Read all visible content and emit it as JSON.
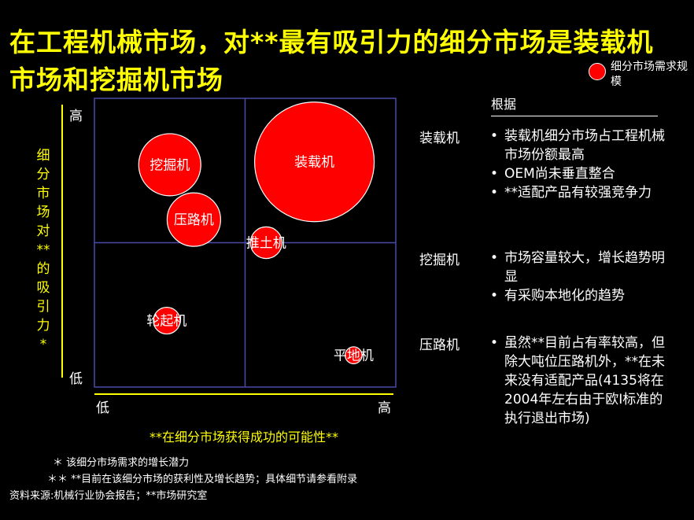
{
  "title": "在工程机械市场，对**最有吸引力的细分市场是装载机市场和挖掘机市场",
  "legend": {
    "label": "细分市场需求规模",
    "color": "#ff0000"
  },
  "basis_header": "根据",
  "reasons": [
    {
      "label": "装载机",
      "points": [
        "装载机细分市场占工程机械市场份额最高",
        "OEM尚未垂直整合",
        "**适配产品有较强竞争力"
      ]
    },
    {
      "label": "挖掘机",
      "points": [
        "市场容量较大，增长趋势明显",
        "有采购本地化的趋势"
      ]
    },
    {
      "label": "压路机",
      "points": [
        "虽然**目前占有率较高，但除大吨位压路机外，**在未来没有适配产品(4135将在2004年左右由于欧I标准的执行退出市场)"
      ]
    }
  ],
  "footnotes": [
    "＊  该细分市场需求的增长潜力",
    "＊＊  **目前在该细分市场的获利性及增长趋势；具体细节请参看附录",
    "资料来源:机械行业协会报告；**市场研究室"
  ],
  "chart_data": {
    "type": "bubble",
    "xlabel": "**在细分市场获得成功的可能性**",
    "ylabel": "细分市场对**的吸引力*",
    "x_ticks": [
      "低",
      "高"
    ],
    "y_ticks": [
      "低",
      "高"
    ],
    "xlim": [
      0,
      10
    ],
    "ylim": [
      0,
      10
    ],
    "quadrant_split": [
      5,
      5
    ],
    "bubble_color": "#ff0000",
    "series": [
      {
        "label": "装载机",
        "x": 7.3,
        "y": 7.8,
        "size": 100
      },
      {
        "label": "挖掘机",
        "x": 2.5,
        "y": 7.7,
        "size": 27
      },
      {
        "label": "压路机",
        "x": 3.3,
        "y": 5.8,
        "size": 20
      },
      {
        "label": "推土机",
        "x": 5.7,
        "y": 5.0,
        "size": 7
      },
      {
        "label": "轮起机",
        "x": 2.4,
        "y": 2.3,
        "size": 5
      },
      {
        "label": "平地机",
        "x": 8.6,
        "y": 1.1,
        "size": 2
      }
    ]
  }
}
